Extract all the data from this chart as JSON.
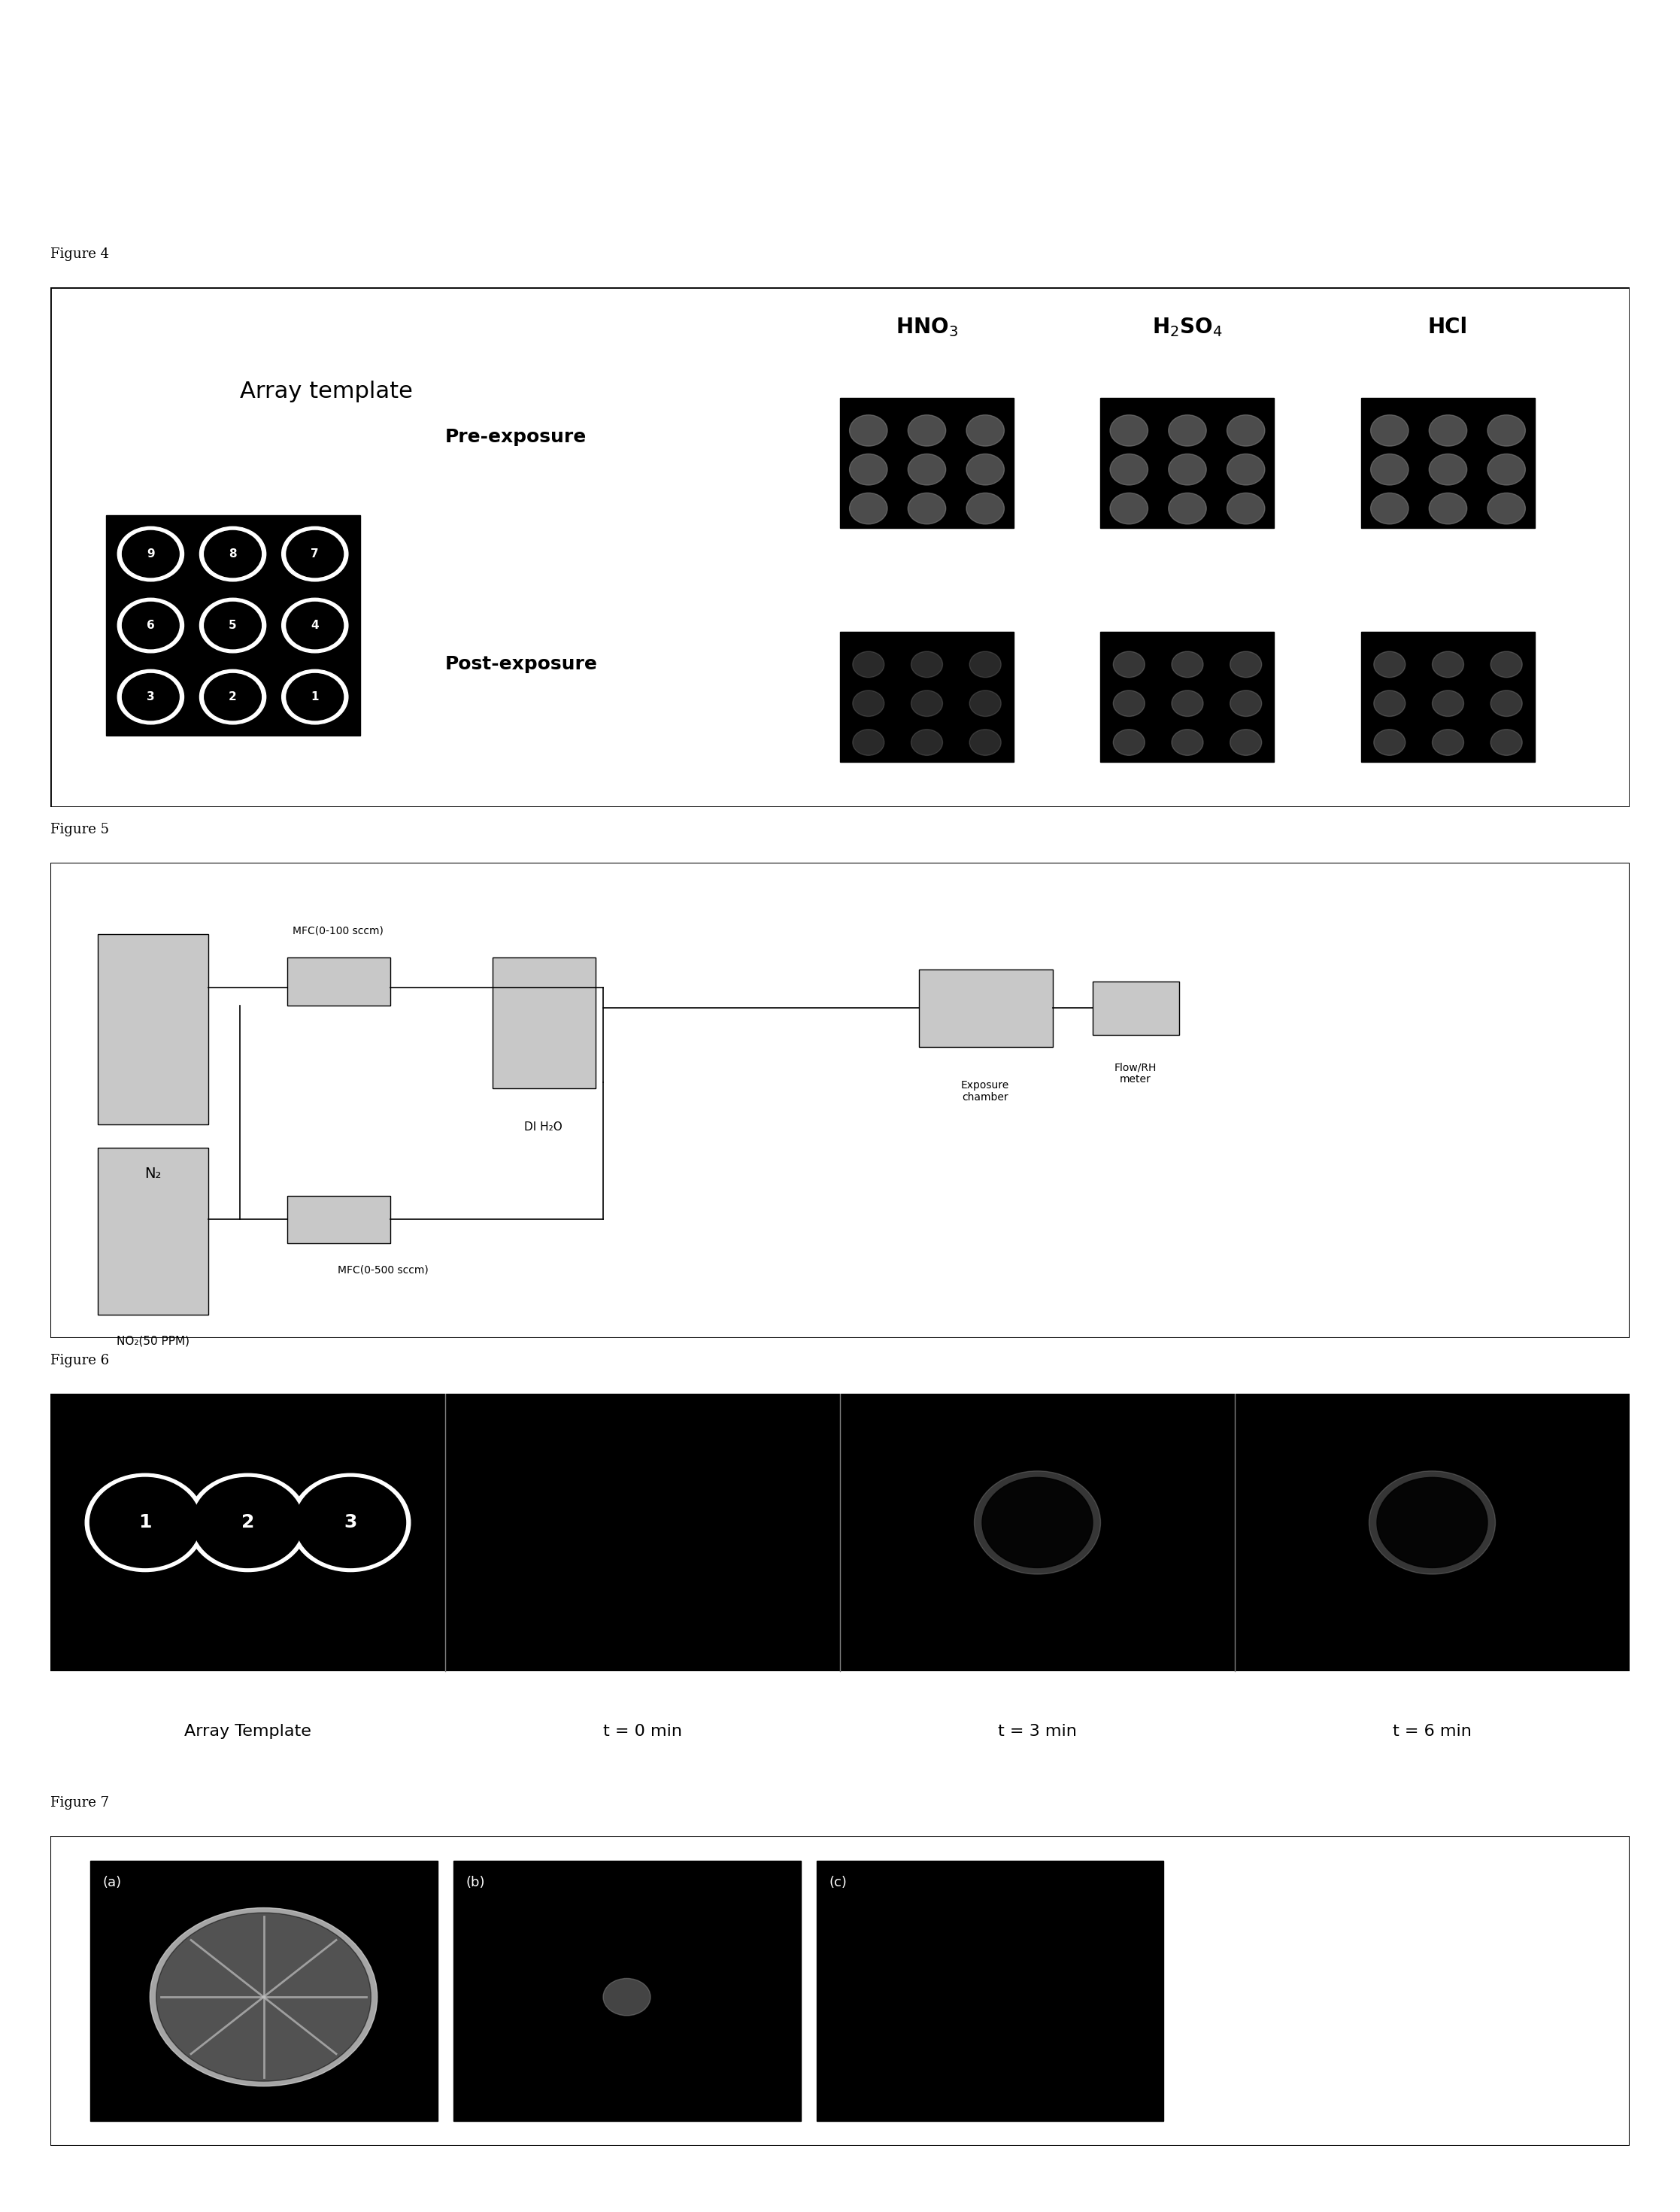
{
  "fig4_label": "Figure 4",
  "fig5_label": "Figure 5",
  "fig6_label": "Figure 6",
  "fig7_label": "Figure 7",
  "fig4_title_array": "Array template",
  "fig4_col1": "HNO₃",
  "fig4_col2": "H₂SO₄",
  "fig4_col3": "HCl",
  "fig4_row1": "Pre-exposure",
  "fig4_row2": "Post-exposure",
  "fig5_mfc1_label": "MFC(0-100 sccm)",
  "fig5_mfc2_label": "MFC(0-500 sccm)",
  "fig5_n2_label": "N₂",
  "fig5_water_label": "DI H₂O",
  "fig5_exposure_label": "Exposure\nchamber",
  "fig5_flowrh_label": "Flow/RH\nmeter",
  "fig5_no2_label": "NO₂(50 PPM)",
  "fig6_labels": [
    "Array Template",
    "t = 0 min",
    "t = 3 min",
    "t = 6 min"
  ],
  "fig7_labels": [
    "(a)",
    "(b)",
    "(c)"
  ],
  "bg_color": "#ffffff",
  "box_bg": "#d0d0d0",
  "black": "#000000",
  "gray_text": "#333333"
}
